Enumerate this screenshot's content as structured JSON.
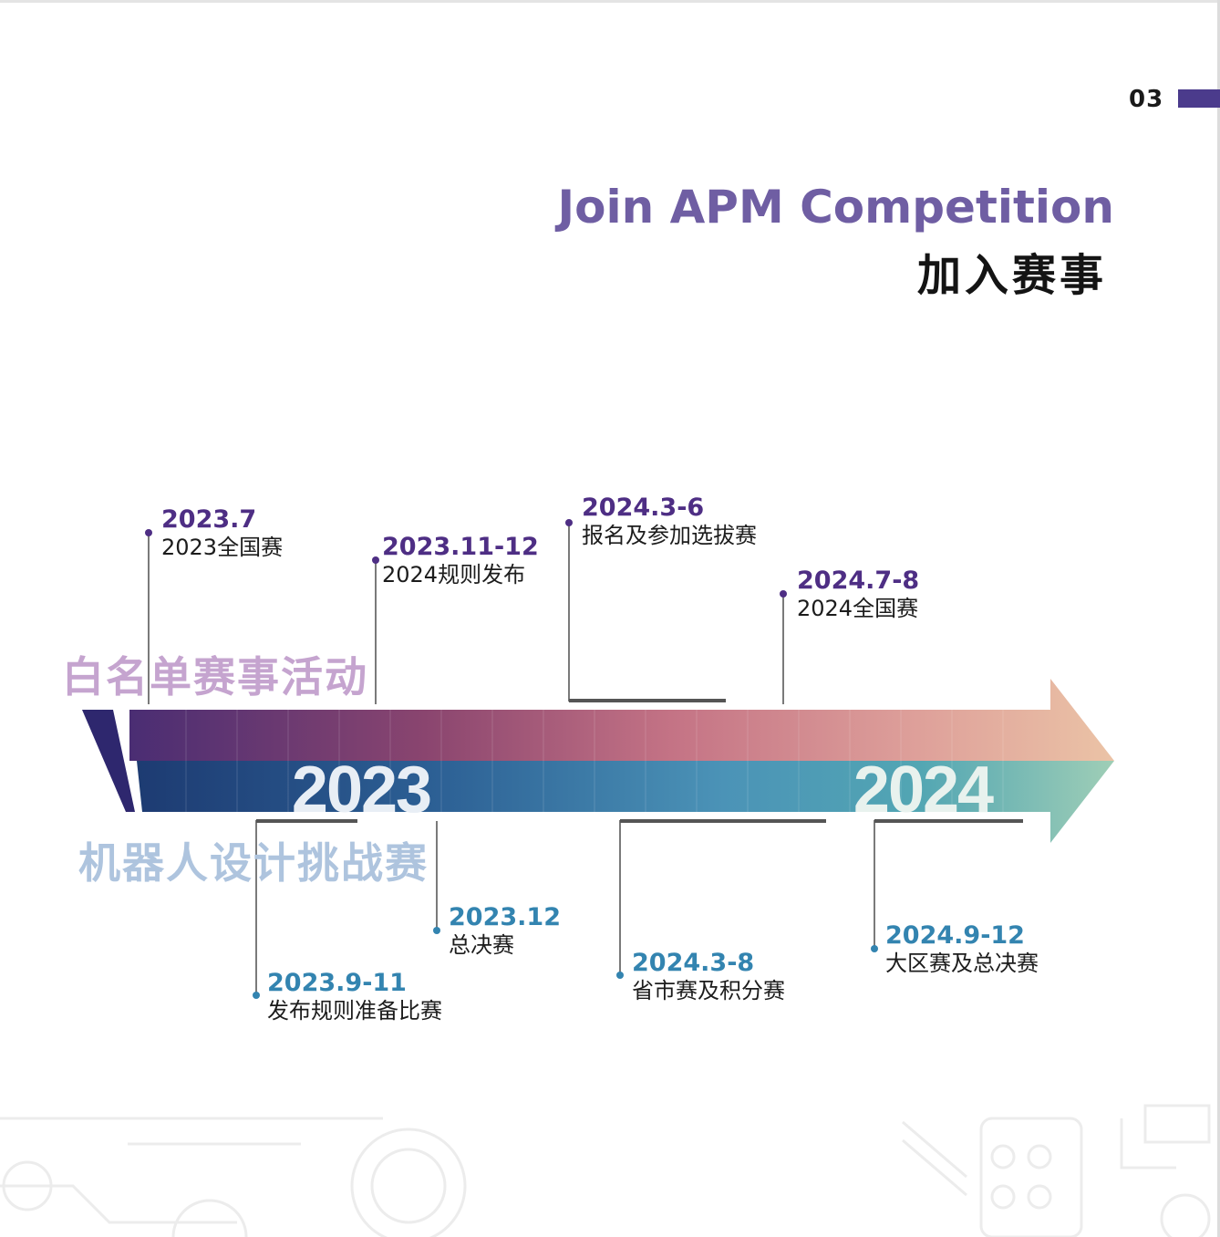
{
  "page_number": "03",
  "title_en": "Join APM Competition",
  "title_cn": "加入赛事",
  "top_track": {
    "label": "白名单赛事活动",
    "events": [
      {
        "date": "2023.7",
        "desc": "2023全国赛"
      },
      {
        "date": "2023.11-12",
        "desc": "2024规则发布"
      },
      {
        "date": "2024.3-6",
        "desc": "报名及参加选拔赛"
      },
      {
        "date": "2024.7-8",
        "desc": "2024全国赛"
      }
    ]
  },
  "bottom_track": {
    "label": "机器人设计挑战赛",
    "events": [
      {
        "date": "2023.9-11",
        "desc": "发布规则准备比赛"
      },
      {
        "date": "2023.12",
        "desc": "总决赛"
      },
      {
        "date": "2024.3-8",
        "desc": "省市赛及积分赛"
      },
      {
        "date": "2024.9-12",
        "desc": "大区赛及总决赛"
      }
    ]
  },
  "year_labels": [
    "2023",
    "2024"
  ],
  "colors": {
    "accent": "#4b3b8c",
    "title_en": "#6f5ea3",
    "top_date": "#4e2e84",
    "bottom_date": "#3384b0",
    "top_band_start": "#4a2d73",
    "top_band_end": "#ebc3a6",
    "bottom_band_start": "#1d3b72",
    "bottom_band_end": "#9fceb6"
  }
}
